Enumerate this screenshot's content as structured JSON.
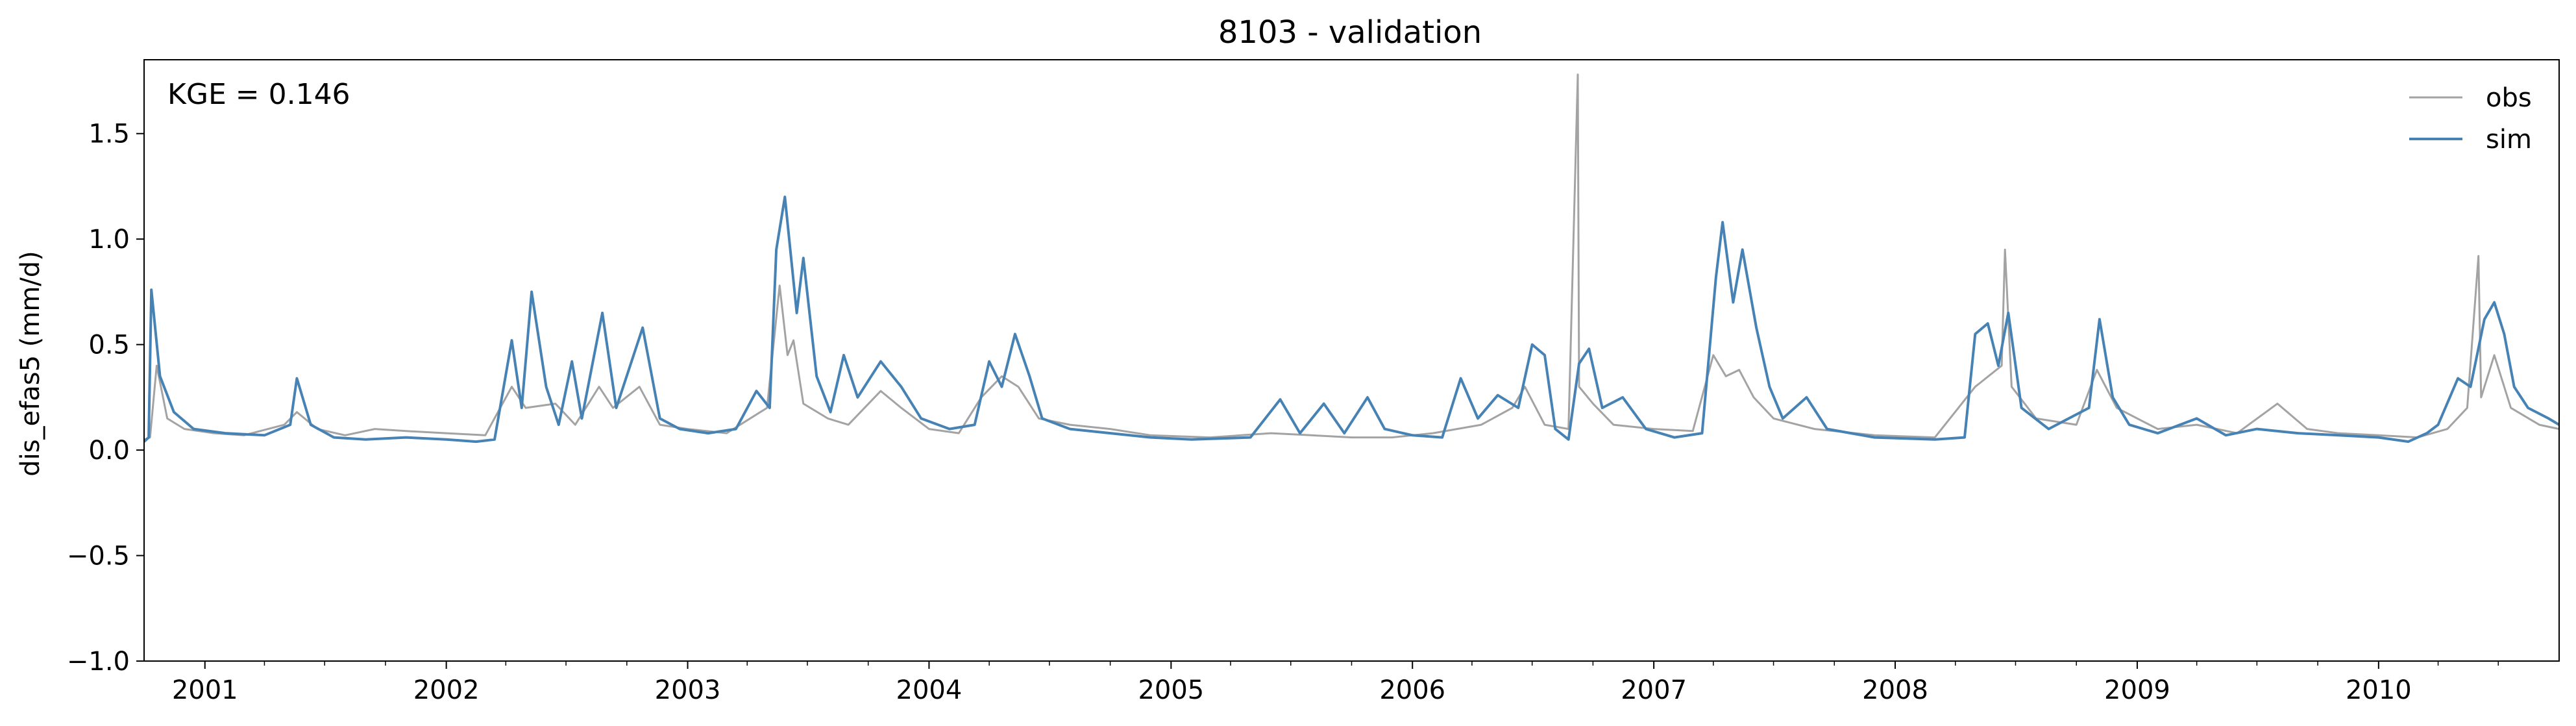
{
  "chart_data": {
    "type": "line",
    "title": "8103 - validation",
    "xlabel": "",
    "ylabel": "dis_efas5 (mm/d)",
    "annotation": "KGE = 0.146",
    "xlim": [
      "2000-10-01",
      "2010-10-01"
    ],
    "ylim": [
      -1.0,
      1.85
    ],
    "yticks": [
      -1.0,
      -0.5,
      0.0,
      0.5,
      1.0,
      1.5
    ],
    "ytick_labels": [
      "−1.0",
      "−0.5",
      "0.0",
      "0.5",
      "1.0",
      "1.5"
    ],
    "xtick_labels": [
      "2001",
      "2002",
      "2003",
      "2004",
      "2005",
      "2006",
      "2007",
      "2008",
      "2009",
      "2010"
    ],
    "legend_position": "upper right",
    "grid": false,
    "series": [
      {
        "name": "obs",
        "color": "#a3a3a3",
        "points": [
          [
            "2000-10-01",
            0.05
          ],
          [
            "2000-10-10",
            0.06
          ],
          [
            "2000-10-20",
            0.4
          ],
          [
            "2000-11-05",
            0.15
          ],
          [
            "2000-12-01",
            0.1
          ],
          [
            "2001-01-15",
            0.08
          ],
          [
            "2001-03-01",
            0.07
          ],
          [
            "2001-05-01",
            0.12
          ],
          [
            "2001-05-20",
            0.18
          ],
          [
            "2001-06-20",
            0.1
          ],
          [
            "2001-08-01",
            0.07
          ],
          [
            "2001-09-15",
            0.1
          ],
          [
            "2001-11-01",
            0.09
          ],
          [
            "2002-01-01",
            0.08
          ],
          [
            "2002-03-01",
            0.07
          ],
          [
            "2002-04-10",
            0.3
          ],
          [
            "2002-05-01",
            0.2
          ],
          [
            "2002-06-15",
            0.22
          ],
          [
            "2002-07-15",
            0.12
          ],
          [
            "2002-08-20",
            0.3
          ],
          [
            "2002-09-10",
            0.2
          ],
          [
            "2002-10-20",
            0.3
          ],
          [
            "2002-11-20",
            0.12
          ],
          [
            "2003-01-01",
            0.1
          ],
          [
            "2003-03-01",
            0.08
          ],
          [
            "2003-05-01",
            0.2
          ],
          [
            "2003-05-20",
            0.78
          ],
          [
            "2003-06-01",
            0.45
          ],
          [
            "2003-06-10",
            0.52
          ],
          [
            "2003-06-25",
            0.22
          ],
          [
            "2003-08-01",
            0.15
          ],
          [
            "2003-09-01",
            0.12
          ],
          [
            "2003-10-20",
            0.28
          ],
          [
            "2003-11-20",
            0.2
          ],
          [
            "2004-01-01",
            0.1
          ],
          [
            "2004-02-15",
            0.08
          ],
          [
            "2004-03-20",
            0.25
          ],
          [
            "2004-04-20",
            0.35
          ],
          [
            "2004-05-15",
            0.3
          ],
          [
            "2004-06-15",
            0.15
          ],
          [
            "2004-08-01",
            0.12
          ],
          [
            "2004-10-01",
            0.1
          ],
          [
            "2004-12-01",
            0.07
          ],
          [
            "2005-03-01",
            0.06
          ],
          [
            "2005-06-01",
            0.08
          ],
          [
            "2005-08-01",
            0.07
          ],
          [
            "2005-10-01",
            0.06
          ],
          [
            "2005-12-01",
            0.06
          ],
          [
            "2006-02-01",
            0.08
          ],
          [
            "2006-04-15",
            0.12
          ],
          [
            "2006-06-01",
            0.2
          ],
          [
            "2006-06-20",
            0.3
          ],
          [
            "2006-07-20",
            0.12
          ],
          [
            "2006-08-25",
            0.1
          ],
          [
            "2006-09-08",
            1.78
          ],
          [
            "2006-09-10",
            0.3
          ],
          [
            "2006-10-01",
            0.22
          ],
          [
            "2006-11-01",
            0.12
          ],
          [
            "2007-01-01",
            0.1
          ],
          [
            "2007-03-01",
            0.09
          ],
          [
            "2007-04-01",
            0.45
          ],
          [
            "2007-04-20",
            0.35
          ],
          [
            "2007-05-10",
            0.38
          ],
          [
            "2007-06-01",
            0.25
          ],
          [
            "2007-07-01",
            0.15
          ],
          [
            "2007-09-01",
            0.1
          ],
          [
            "2007-12-01",
            0.07
          ],
          [
            "2008-03-01",
            0.06
          ],
          [
            "2008-05-01",
            0.3
          ],
          [
            "2008-06-10",
            0.4
          ],
          [
            "2008-06-15",
            0.95
          ],
          [
            "2008-06-25",
            0.3
          ],
          [
            "2008-08-01",
            0.15
          ],
          [
            "2008-10-01",
            0.12
          ],
          [
            "2008-11-01",
            0.38
          ],
          [
            "2008-12-01",
            0.2
          ],
          [
            "2009-02-01",
            0.1
          ],
          [
            "2009-04-01",
            0.12
          ],
          [
            "2009-06-01",
            0.08
          ],
          [
            "2009-08-01",
            0.22
          ],
          [
            "2009-09-15",
            0.1
          ],
          [
            "2009-11-01",
            0.08
          ],
          [
            "2010-01-01",
            0.07
          ],
          [
            "2010-03-01",
            0.06
          ],
          [
            "2010-04-15",
            0.1
          ],
          [
            "2010-05-15",
            0.2
          ],
          [
            "2010-06-01",
            0.92
          ],
          [
            "2010-06-05",
            0.25
          ],
          [
            "2010-06-25",
            0.45
          ],
          [
            "2010-07-20",
            0.2
          ],
          [
            "2010-09-01",
            0.12
          ],
          [
            "2010-10-01",
            0.1
          ]
        ]
      },
      {
        "name": "sim",
        "color": "#4682b4",
        "points": [
          [
            "2000-10-01",
            0.04
          ],
          [
            "2000-10-08",
            0.06
          ],
          [
            "2000-10-12",
            0.76
          ],
          [
            "2000-10-25",
            0.35
          ],
          [
            "2000-11-15",
            0.18
          ],
          [
            "2000-12-15",
            0.1
          ],
          [
            "2001-02-01",
            0.08
          ],
          [
            "2001-04-01",
            0.07
          ],
          [
            "2001-05-10",
            0.12
          ],
          [
            "2001-05-20",
            0.34
          ],
          [
            "2001-06-10",
            0.12
          ],
          [
            "2001-07-15",
            0.06
          ],
          [
            "2001-09-01",
            0.05
          ],
          [
            "2001-11-01",
            0.06
          ],
          [
            "2002-01-01",
            0.05
          ],
          [
            "2002-02-15",
            0.04
          ],
          [
            "2002-03-15",
            0.05
          ],
          [
            "2002-04-10",
            0.52
          ],
          [
            "2002-04-25",
            0.2
          ],
          [
            "2002-05-10",
            0.75
          ],
          [
            "2002-06-01",
            0.3
          ],
          [
            "2002-06-20",
            0.12
          ],
          [
            "2002-07-10",
            0.42
          ],
          [
            "2002-07-25",
            0.15
          ],
          [
            "2002-08-25",
            0.65
          ],
          [
            "2002-09-15",
            0.2
          ],
          [
            "2002-10-25",
            0.58
          ],
          [
            "2002-11-20",
            0.15
          ],
          [
            "2002-12-20",
            0.1
          ],
          [
            "2003-02-01",
            0.08
          ],
          [
            "2003-03-15",
            0.1
          ],
          [
            "2003-04-15",
            0.28
          ],
          [
            "2003-05-05",
            0.2
          ],
          [
            "2003-05-15",
            0.95
          ],
          [
            "2003-05-28",
            1.2
          ],
          [
            "2003-06-15",
            0.65
          ],
          [
            "2003-06-25",
            0.91
          ],
          [
            "2003-07-15",
            0.35
          ],
          [
            "2003-08-05",
            0.18
          ],
          [
            "2003-08-25",
            0.45
          ],
          [
            "2003-09-15",
            0.25
          ],
          [
            "2003-10-20",
            0.42
          ],
          [
            "2003-11-20",
            0.3
          ],
          [
            "2003-12-20",
            0.15
          ],
          [
            "2004-02-01",
            0.1
          ],
          [
            "2004-03-10",
            0.12
          ],
          [
            "2004-04-01",
            0.42
          ],
          [
            "2004-04-20",
            0.3
          ],
          [
            "2004-05-10",
            0.55
          ],
          [
            "2004-06-01",
            0.35
          ],
          [
            "2004-06-20",
            0.15
          ],
          [
            "2004-08-01",
            0.1
          ],
          [
            "2004-10-01",
            0.08
          ],
          [
            "2004-12-01",
            0.06
          ],
          [
            "2005-02-01",
            0.05
          ],
          [
            "2005-05-01",
            0.06
          ],
          [
            "2005-06-15",
            0.24
          ],
          [
            "2005-07-15",
            0.08
          ],
          [
            "2005-08-20",
            0.22
          ],
          [
            "2005-09-20",
            0.08
          ],
          [
            "2005-10-25",
            0.25
          ],
          [
            "2005-11-20",
            0.1
          ],
          [
            "2006-01-01",
            0.07
          ],
          [
            "2006-02-15",
            0.06
          ],
          [
            "2006-03-15",
            0.34
          ],
          [
            "2006-04-10",
            0.15
          ],
          [
            "2006-05-10",
            0.26
          ],
          [
            "2006-06-10",
            0.2
          ],
          [
            "2006-07-01",
            0.5
          ],
          [
            "2006-07-20",
            0.45
          ],
          [
            "2006-08-05",
            0.1
          ],
          [
            "2006-08-25",
            0.05
          ],
          [
            "2006-09-10",
            0.41
          ],
          [
            "2006-09-25",
            0.48
          ],
          [
            "2006-10-15",
            0.2
          ],
          [
            "2006-11-15",
            0.25
          ],
          [
            "2006-12-20",
            0.1
          ],
          [
            "2007-02-01",
            0.06
          ],
          [
            "2007-03-15",
            0.08
          ],
          [
            "2007-04-05",
            0.82
          ],
          [
            "2007-04-15",
            1.08
          ],
          [
            "2007-05-01",
            0.7
          ],
          [
            "2007-05-15",
            0.95
          ],
          [
            "2007-06-05",
            0.58
          ],
          [
            "2007-06-25",
            0.3
          ],
          [
            "2007-07-15",
            0.15
          ],
          [
            "2007-08-20",
            0.25
          ],
          [
            "2007-09-20",
            0.1
          ],
          [
            "2007-12-01",
            0.06
          ],
          [
            "2008-03-01",
            0.05
          ],
          [
            "2008-04-15",
            0.06
          ],
          [
            "2008-05-01",
            0.55
          ],
          [
            "2008-05-20",
            0.6
          ],
          [
            "2008-06-05",
            0.4
          ],
          [
            "2008-06-20",
            0.65
          ],
          [
            "2008-07-10",
            0.2
          ],
          [
            "2008-08-20",
            0.1
          ],
          [
            "2008-10-20",
            0.2
          ],
          [
            "2008-11-05",
            0.62
          ],
          [
            "2008-11-25",
            0.25
          ],
          [
            "2008-12-20",
            0.12
          ],
          [
            "2009-02-01",
            0.08
          ],
          [
            "2009-04-01",
            0.15
          ],
          [
            "2009-05-15",
            0.07
          ],
          [
            "2009-07-01",
            0.1
          ],
          [
            "2009-09-01",
            0.08
          ],
          [
            "2009-11-01",
            0.07
          ],
          [
            "2010-01-01",
            0.06
          ],
          [
            "2010-02-15",
            0.04
          ],
          [
            "2010-03-15",
            0.08
          ],
          [
            "2010-04-01",
            0.12
          ],
          [
            "2010-05-01",
            0.34
          ],
          [
            "2010-05-20",
            0.3
          ],
          [
            "2010-06-10",
            0.62
          ],
          [
            "2010-06-25",
            0.7
          ],
          [
            "2010-07-10",
            0.55
          ],
          [
            "2010-07-25",
            0.3
          ],
          [
            "2010-08-15",
            0.2
          ],
          [
            "2010-09-15",
            0.15
          ],
          [
            "2010-10-01",
            0.12
          ]
        ]
      }
    ]
  }
}
